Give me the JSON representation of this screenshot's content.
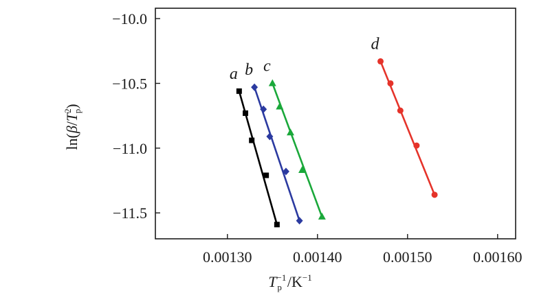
{
  "chart_data": {
    "type": "scatter",
    "title": "",
    "xlabel": {
      "main": "T",
      "sub": "p",
      "sup": "−1",
      "rest": "/K",
      "rest_sup": "−1"
    },
    "ylabel": {
      "pre": "ln(",
      "beta": "β",
      "slash": "/",
      "T": "T",
      "sup": "2",
      "sub": "p",
      "post": ")"
    },
    "xlim": [
      0.00122,
      0.00162
    ],
    "ylim": [
      -11.7,
      -9.92
    ],
    "xticks": [
      0.0013,
      0.0014,
      0.0015,
      0.0016
    ],
    "xtick_labels": [
      "0.00130",
      "0.00140",
      "0.00150",
      "0.00160"
    ],
    "yticks": [
      -10.0,
      -10.5,
      -11.0,
      -11.5
    ],
    "ytick_labels": [
      "−10.0",
      "−10.5",
      "−11.0",
      "−11.5"
    ],
    "grid": false,
    "series": [
      {
        "name": "a",
        "color": "#000000",
        "marker": "square",
        "x": [
          0.001313,
          0.00132,
          0.001327,
          0.001343,
          0.001355
        ],
        "y": [
          -10.56,
          -10.73,
          -10.94,
          -11.21,
          -11.59
        ],
        "fit": {
          "x": [
            0.001313,
            0.001355
          ],
          "y": [
            -10.56,
            -11.59
          ]
        }
      },
      {
        "name": "b",
        "color": "#2b3aa0",
        "marker": "diamond",
        "x": [
          0.00133,
          0.00134,
          0.001347,
          0.001365,
          0.00138
        ],
        "y": [
          -10.53,
          -10.7,
          -10.91,
          -11.18,
          -11.56
        ],
        "fit": {
          "x": [
            0.00133,
            0.00138
          ],
          "y": [
            -10.53,
            -11.56
          ]
        }
      },
      {
        "name": "c",
        "color": "#1aa83a",
        "marker": "triangle",
        "x": [
          0.00135,
          0.001358,
          0.00137,
          0.001383,
          0.001405
        ],
        "y": [
          -10.5,
          -10.68,
          -10.88,
          -11.17,
          -11.53
        ],
        "fit": {
          "x": [
            0.00135,
            0.001405
          ],
          "y": [
            -10.5,
            -11.53
          ]
        }
      },
      {
        "name": "d",
        "color": "#e5332a",
        "marker": "circle",
        "x": [
          0.00147,
          0.001481,
          0.001492,
          0.00151,
          0.00153
        ],
        "y": [
          -10.33,
          -10.5,
          -10.71,
          -10.98,
          -11.36
        ],
        "fit": {
          "x": [
            0.00147,
            0.00153
          ],
          "y": [
            -10.33,
            -11.36
          ]
        }
      }
    ]
  }
}
